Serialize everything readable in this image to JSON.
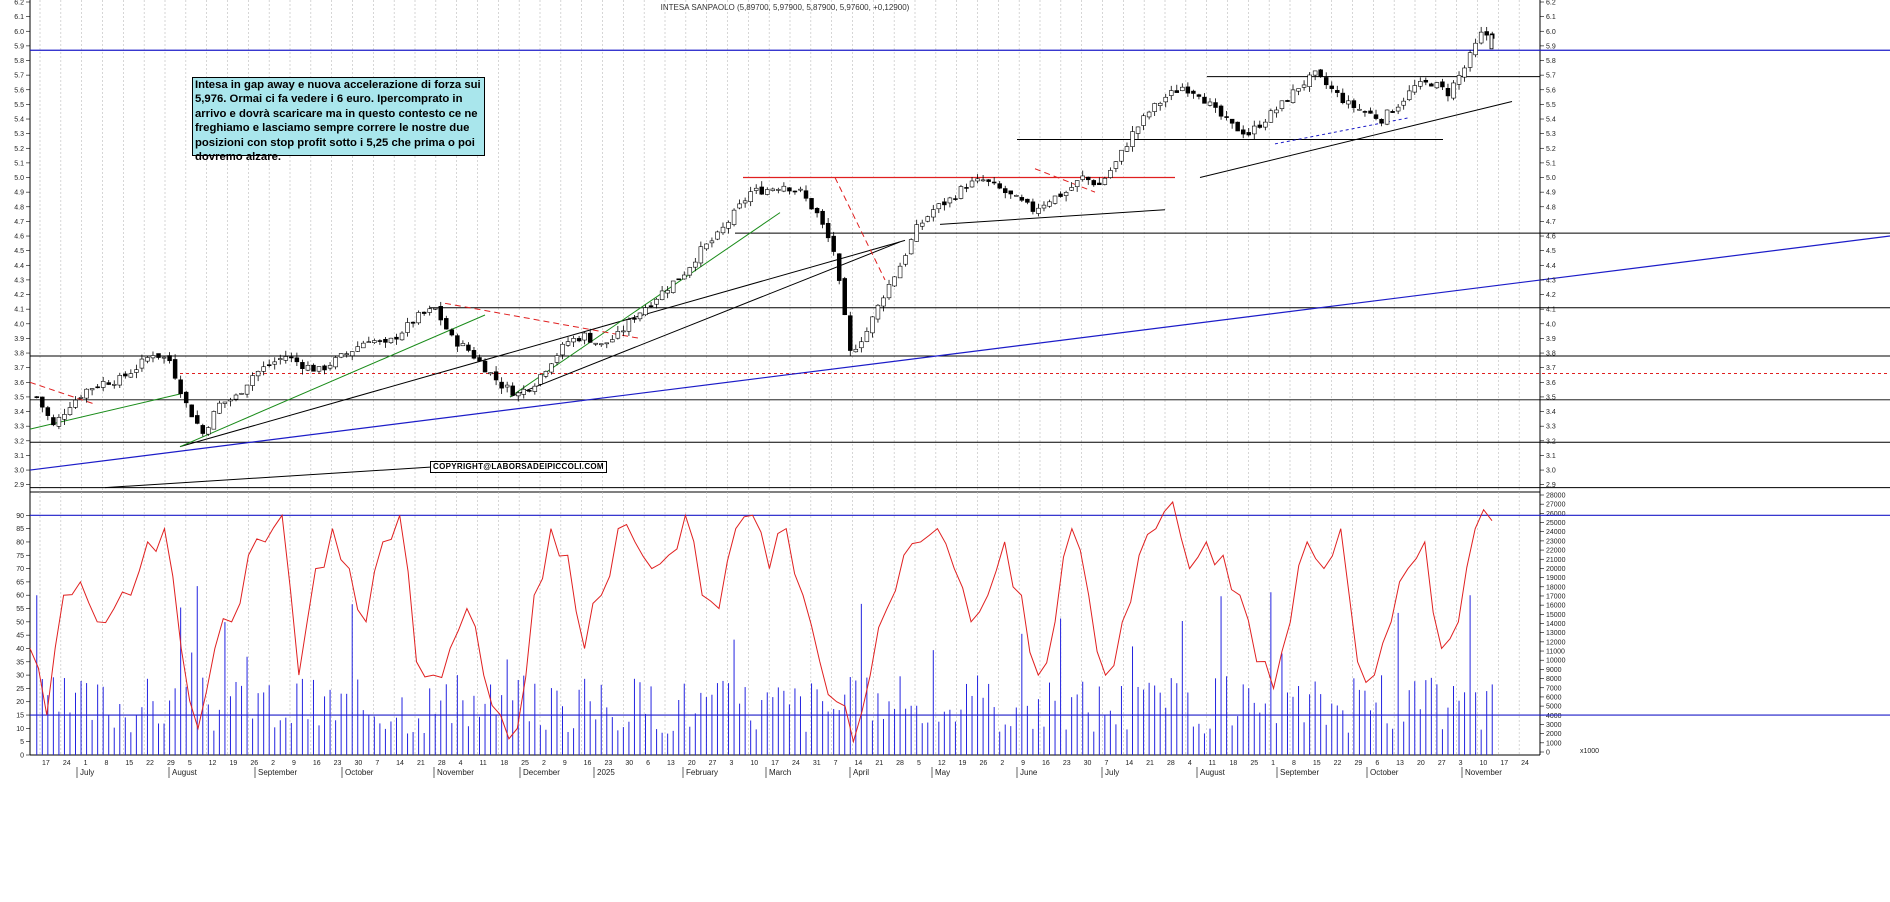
{
  "chart_data": [
    {
      "type": "candlestick",
      "title": "INTESA SANPAOLO (5,89700, 5,97900, 5,87900, 5,97600, +0,12900)",
      "ylim": [
        2.85,
        6.2
      ],
      "y_ticks": [
        "2.9",
        "3.0",
        "3.1",
        "3.2",
        "3.3",
        "3.4",
        "3.5",
        "3.6",
        "3.7",
        "3.8",
        "3.9",
        "4.0",
        "4.1",
        "4.2",
        "4.3",
        "4.4",
        "4.5",
        "4.6",
        "4.7",
        "4.8",
        "4.9",
        "5.0",
        "5.1",
        "5.2",
        "5.3",
        "5.4",
        "5.5",
        "5.6",
        "5.7",
        "5.8",
        "5.9",
        "6.0",
        "6.1",
        "6.2"
      ],
      "x_day_ticks": [
        "17",
        "24",
        "1",
        "8",
        "15",
        "22",
        "29",
        "5",
        "12",
        "19",
        "26",
        "2",
        "9",
        "16",
        "23",
        "30",
        "7",
        "14",
        "21",
        "28",
        "4",
        "11",
        "18",
        "25",
        "2",
        "9",
        "16",
        "23",
        "30",
        "6",
        "13",
        "20",
        "27",
        "3",
        "10",
        "17",
        "24",
        "31",
        "7",
        "14",
        "21",
        "28",
        "5",
        "12",
        "19",
        "26",
        "2",
        "9",
        "16",
        "23",
        "30",
        "7",
        "14",
        "21",
        "28",
        "4",
        "11",
        "18",
        "25",
        "1",
        "8",
        "15",
        "22",
        "29",
        "6",
        "13",
        "20",
        "27",
        "3",
        "10",
        "17",
        "24"
      ],
      "x_month_ticks": [
        "July",
        "August",
        "September",
        "October",
        "November",
        "December",
        "2025",
        "February",
        "March",
        "April",
        "May",
        "June",
        "July",
        "August",
        "September",
        "October",
        "November"
      ],
      "close_path": [
        3.5,
        3.3,
        3.45,
        3.55,
        3.6,
        3.62,
        3.7,
        3.8,
        3.75,
        3.45,
        3.25,
        3.45,
        3.5,
        3.65,
        3.72,
        3.78,
        3.72,
        3.68,
        3.75,
        3.82,
        3.9,
        3.85,
        3.95,
        4.05,
        4.1,
        3.9,
        3.82,
        3.7,
        3.58,
        3.52,
        3.6,
        3.75,
        3.88,
        3.92,
        3.85,
        3.92,
        4.05,
        4.15,
        4.25,
        4.35,
        4.5,
        4.6,
        4.75,
        4.9,
        4.92,
        4.95,
        4.9,
        4.75,
        4.5,
        3.8,
        3.95,
        4.2,
        4.4,
        4.65,
        4.78,
        4.85,
        4.95,
        4.98,
        4.92,
        4.85,
        4.78,
        4.85,
        4.9,
        5.0,
        4.95,
        5.1,
        5.3,
        5.45,
        5.55,
        5.62,
        5.58,
        5.45,
        5.35,
        5.3,
        5.4,
        5.5,
        5.62,
        5.7,
        5.6,
        5.5,
        5.45,
        5.4,
        5.5,
        5.62,
        5.65,
        5.58,
        5.75,
        5.976
      ],
      "annotations": [
        "Intesa in gap away e nuova accelerazione di forza sui 5,976. Ormai ci fa vedere i 6 euro. Ipercomprato in arrivo e dovrà scaricare ma in questo contesto ce ne freghiamo e lasciamo sempre correre le nostre due posizioni con stop profit sotto i 5,25 che prima o poi dovremo alzare.",
        "COPYRIGHT@LABORSADEIPICCOLI.COM"
      ],
      "horizontal_levels": [
        5.87,
        3.78,
        3.48,
        3.19,
        2.88,
        4.62,
        4.11
      ],
      "colors": {
        "price": "#000000",
        "level": "#1c1cc8",
        "support": "#000000",
        "resistance_red": "#e02020",
        "trend_green": "#1a8c1a"
      }
    },
    {
      "type": "line+bar",
      "ylim": [
        0,
        95
      ],
      "y_ticks": [
        "0",
        "5",
        "10",
        "15",
        "20",
        "25",
        "30",
        "35",
        "40",
        "45",
        "50",
        "55",
        "60",
        "65",
        "70",
        "75",
        "80",
        "85",
        "90"
      ],
      "right_ticks": [
        "0",
        "1000",
        "2000",
        "3000",
        "4000",
        "5000",
        "6000",
        "7000",
        "8000",
        "9000",
        "10000",
        "11000",
        "12000",
        "13000",
        "14000",
        "15000",
        "16000",
        "17000",
        "18000",
        "19000",
        "20000",
        "21000",
        "22000",
        "23000",
        "24000",
        "25000",
        "26000",
        "27000",
        "28000"
      ],
      "right_unit": "x1000",
      "oscillator_path": [
        40,
        15,
        60,
        65,
        50,
        55,
        60,
        80,
        85,
        40,
        10,
        40,
        50,
        75,
        80,
        90,
        30,
        70,
        85,
        70,
        50,
        80,
        90,
        35,
        30,
        40,
        55,
        30,
        15,
        10,
        60,
        85,
        75,
        40,
        60,
        85,
        80,
        70,
        75,
        90,
        60,
        55,
        85,
        90,
        70,
        85,
        60,
        35,
        20,
        5,
        30,
        55,
        75,
        80,
        85,
        70,
        50,
        60,
        80,
        60,
        30,
        50,
        85,
        60,
        30,
        50,
        75,
        85,
        95,
        70,
        80,
        75,
        60,
        35,
        25,
        50,
        80,
        70,
        85,
        35,
        30,
        50,
        70,
        80,
        40,
        50,
        85,
        88
      ],
      "levels": [
        90,
        15
      ],
      "colors": {
        "oscillator": "#e02020",
        "volume": "#2323e0",
        "level": "#1c1cc8"
      }
    }
  ]
}
